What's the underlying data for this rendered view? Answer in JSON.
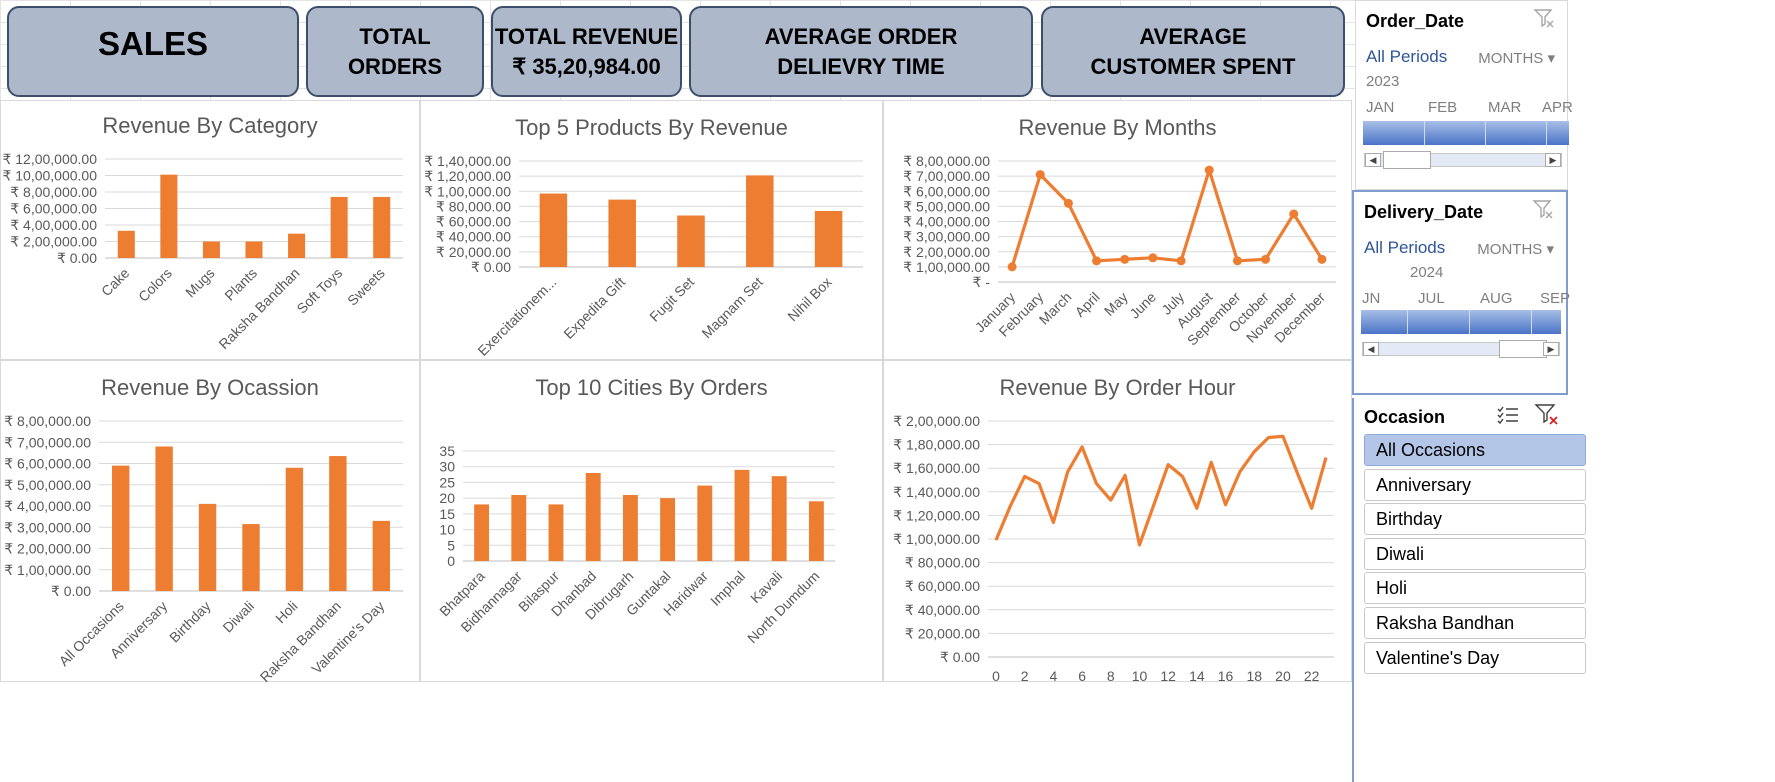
{
  "kpis": {
    "sales": "SALES",
    "total_orders": "TOTAL ORDERS",
    "total_revenue_label": "TOTAL REVENUE",
    "total_revenue_value": "₹ 35,20,984.00",
    "avg_delivery": "AVERAGE ORDER DELIEVRY TIME",
    "avg_spent": "AVERAGE CUSTOMER SPENT"
  },
  "colors": {
    "bar": "#ed7d31",
    "kpi_bg": "#adb9ca",
    "kpi_border": "#3b4e6b",
    "slicer_selected": "#b4c6e7",
    "timeline_bar": "#4a73c8"
  },
  "slicers": {
    "order_date": {
      "title": "Order_Date",
      "period": "All Periods",
      "unit": "MONTHS",
      "year": "2023",
      "months": [
        "JAN",
        "FEB",
        "MAR",
        "APR"
      ],
      "icon": "clear-filter-icon"
    },
    "delivery_date": {
      "title": "Delivery_Date",
      "period": "All Periods",
      "unit": "MONTHS",
      "year": "2024",
      "months": [
        "JN",
        "JUL",
        "AUG",
        "SEP"
      ],
      "icon": "clear-filter-icon"
    },
    "occasion": {
      "title": "Occasion",
      "items": [
        "All Occasions",
        "Anniversary",
        "Birthday",
        "Diwali",
        "Holi",
        "Raksha Bandhan",
        "Valentine's Day"
      ],
      "selected": "All Occasions",
      "icons": [
        "multi-select-icon",
        "clear-filter-icon"
      ]
    }
  },
  "chart_data": [
    {
      "id": "category",
      "type": "bar",
      "title": "Revenue By Category",
      "categories": [
        "Cake",
        "Colors",
        "Mugs",
        "Plants",
        "Raksha Bandhan",
        "Soft Toys",
        "Sweets"
      ],
      "values": [
        330000,
        1010000,
        200000,
        200000,
        295000,
        740000,
        740000
      ],
      "yticks": [
        "₹ 0.00",
        "₹ 2,00,000.00",
        "₹ 4,00,000.00",
        "₹ 6,00,000.00",
        "₹ 8,00,000.00",
        "₹ 10,00,000.00",
        "₹ 12,00,000.00"
      ],
      "ylim": [
        0,
        1200000
      ],
      "grid": true
    },
    {
      "id": "products",
      "type": "bar",
      "title": "Top 5 Products By Revenue",
      "categories": [
        "Exercitationem...",
        "Expedita Gift",
        "Fugit Set",
        "Magnam Set",
        "Nihil Box"
      ],
      "values": [
        97000,
        89000,
        68000,
        121000,
        74000
      ],
      "yticks": [
        "₹ 0.00",
        "₹ 20,000.00",
        "₹ 40,000.00",
        "₹ 60,000.00",
        "₹ 80,000.00",
        "₹ 1,00,000.00",
        "₹ 1,20,000.00",
        "₹ 1,40,000.00"
      ],
      "ylim": [
        0,
        140000
      ],
      "grid": true
    },
    {
      "id": "months",
      "type": "line",
      "title": "Revenue By Months",
      "categories": [
        "January",
        "February",
        "March",
        "April",
        "May",
        "June",
        "July",
        "August",
        "September",
        "October",
        "November",
        "December"
      ],
      "values": [
        100000,
        710000,
        520000,
        140000,
        150000,
        160000,
        140000,
        740000,
        140000,
        150000,
        450000,
        150000
      ],
      "yticks": [
        "₹ -",
        "₹ 1,00,000.00",
        "₹ 2,00,000.00",
        "₹ 3,00,000.00",
        "₹ 4,00,000.00",
        "₹ 5,00,000.00",
        "₹ 6,00,000.00",
        "₹ 7,00,000.00",
        "₹ 8,00,000.00"
      ],
      "ylim": [
        0,
        800000
      ],
      "markers": true,
      "grid": true
    },
    {
      "id": "occasion",
      "type": "bar",
      "title": "Revenue By Ocassion",
      "categories": [
        "All Occasions",
        "Anniversary",
        "Birthday",
        "Diwali",
        "Holi",
        "Raksha Bandhan",
        "Valentine's Day"
      ],
      "values": [
        590000,
        680000,
        410000,
        315000,
        580000,
        635000,
        330000
      ],
      "yticks": [
        "₹ 0.00",
        "₹ 1,00,000.00",
        "₹ 2,00,000.00",
        "₹ 3,00,000.00",
        "₹ 4,00,000.00",
        "₹ 5,00,000.00",
        "₹ 6,00,000.00",
        "₹ 7,00,000.00",
        "₹ 8,00,000.00"
      ],
      "ylim": [
        0,
        800000
      ],
      "grid": true
    },
    {
      "id": "cities",
      "type": "bar",
      "title": "Top 10 Cities By Orders",
      "categories": [
        "Bhatpara",
        "Bidhannagar",
        "Bilaspur",
        "Dhanbad",
        "Dibrugarh",
        "Guntakal",
        "Haridwar",
        "Imphal",
        "Kavali",
        "North Dumdum"
      ],
      "values": [
        18,
        21,
        18,
        28,
        21,
        20,
        24,
        29,
        27,
        19
      ],
      "yticks": [
        "0",
        "5",
        "10",
        "15",
        "20",
        "25",
        "30",
        "35"
      ],
      "ylim": [
        0,
        35
      ],
      "grid": true
    },
    {
      "id": "hour",
      "type": "line",
      "title": "Revenue By Order Hour",
      "x": [
        0,
        1,
        2,
        3,
        4,
        5,
        6,
        7,
        8,
        9,
        10,
        11,
        12,
        13,
        14,
        15,
        16,
        17,
        18,
        19,
        20,
        21,
        22,
        23
      ],
      "values": [
        99000,
        128000,
        153000,
        147000,
        114000,
        157000,
        178000,
        147000,
        133000,
        154000,
        95000,
        129000,
        163000,
        153000,
        126000,
        165000,
        129000,
        157000,
        174000,
        186000,
        187000,
        156000,
        126000,
        169000
      ],
      "xticks": [
        "0",
        "2",
        "4",
        "6",
        "8",
        "10",
        "12",
        "14",
        "16",
        "18",
        "20",
        "22"
      ],
      "yticks": [
        "₹ 0.00",
        "₹ 20,000.00",
        "₹ 40,000.00",
        "₹ 60,000.00",
        "₹ 80,000.00",
        "₹ 1,00,000.00",
        "₹ 1,20,000.00",
        "₹ 1,40,000.00",
        "₹ 1,60,000.00",
        "₹ 1,80,000.00",
        "₹ 2,00,000.00"
      ],
      "ylim": [
        0,
        200000
      ],
      "markers": false,
      "grid": true
    }
  ]
}
